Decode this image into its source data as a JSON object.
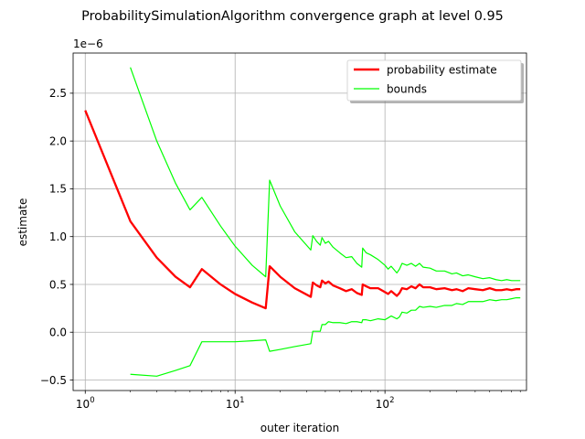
{
  "chart_data": {
    "type": "line",
    "title": "ProbabilitySimulationAlgorithm convergence graph at level 0.95",
    "xlabel": "outer iteration",
    "ylabel": "estimate",
    "x_scale": "log",
    "xlim": [
      0.83,
      880
    ],
    "ylim": [
      -6.1e-07,
      2.92e-06
    ],
    "y_offset_label": "1e−6",
    "x_ticks": [
      {
        "value": 1,
        "base": "10",
        "exp": "0"
      },
      {
        "value": 10,
        "base": "10",
        "exp": "1"
      },
      {
        "value": 100,
        "base": "10",
        "exp": "2"
      }
    ],
    "y_ticks": [
      {
        "value": -5e-07,
        "label": "−0.5"
      },
      {
        "value": 0,
        "label": "0.0"
      },
      {
        "value": 5e-07,
        "label": "0.5"
      },
      {
        "value": 1e-06,
        "label": "1.0"
      },
      {
        "value": 1.5e-06,
        "label": "1.5"
      },
      {
        "value": 2e-06,
        "label": "2.0"
      },
      {
        "value": 2.5e-06,
        "label": "2.5"
      }
    ],
    "grid": true,
    "legend_position": "top-right",
    "series": [
      {
        "name": "probability estimate",
        "color": "#ff0000",
        "x": [
          1,
          2,
          3,
          4,
          5,
          6,
          8,
          10,
          13,
          16,
          17,
          20,
          25,
          32,
          33,
          35,
          37,
          38,
          40,
          42,
          45,
          50,
          55,
          60,
          65,
          70,
          71,
          75,
          80,
          90,
          100,
          105,
          110,
          120,
          125,
          130,
          140,
          150,
          160,
          170,
          180,
          200,
          220,
          250,
          280,
          300,
          330,
          360,
          400,
          450,
          500,
          550,
          600,
          650,
          700,
          750,
          800
        ],
        "y": [
          2.32e-06,
          1.16e-06,
          7.8e-07,
          5.8e-07,
          4.7e-07,
          6.6e-07,
          5e-07,
          4e-07,
          3.1e-07,
          2.5e-07,
          6.9e-07,
          5.8e-07,
          4.6e-07,
          3.7e-07,
          5.2e-07,
          4.9e-07,
          4.7e-07,
          5.4e-07,
          5.1e-07,
          5.3e-07,
          4.9e-07,
          4.6e-07,
          4.3e-07,
          4.5e-07,
          4.1e-07,
          3.9e-07,
          5e-07,
          4.8e-07,
          4.6e-07,
          4.6e-07,
          4.2e-07,
          4e-07,
          4.3e-07,
          3.8e-07,
          4.1e-07,
          4.6e-07,
          4.5e-07,
          4.8e-07,
          4.6e-07,
          5e-07,
          4.7e-07,
          4.7e-07,
          4.5e-07,
          4.6e-07,
          4.4e-07,
          4.5e-07,
          4.3e-07,
          4.6e-07,
          4.5e-07,
          4.4e-07,
          4.6e-07,
          4.4e-07,
          4.4e-07,
          4.5e-07,
          4.4e-07,
          4.5e-07,
          4.5e-07
        ]
      },
      {
        "name": "bounds",
        "color": "#00ff00",
        "x": [
          2,
          3,
          4,
          5,
          6,
          8,
          10,
          13,
          16,
          17,
          20,
          25,
          32,
          33,
          35,
          37,
          38,
          40,
          42,
          45,
          50,
          55,
          60,
          65,
          70,
          71,
          75,
          80,
          90,
          100,
          105,
          110,
          120,
          125,
          130,
          140,
          150,
          160,
          170,
          180,
          200,
          220,
          250,
          280,
          300,
          330,
          360,
          400,
          450,
          500,
          550,
          600,
          650,
          700,
          750,
          800
        ],
        "y": [
          2.77e-06,
          2e-06,
          1.56e-06,
          1.28e-06,
          1.41e-06,
          1.11e-06,
          9e-07,
          7e-07,
          5.8e-07,
          1.59e-06,
          1.32e-06,
          1.05e-06,
          8.6e-07,
          1.01e-06,
          9.5e-07,
          9.1e-07,
          9.9e-07,
          9.3e-07,
          9.5e-07,
          8.9e-07,
          8.3e-07,
          7.8e-07,
          7.9e-07,
          7.2e-07,
          6.8e-07,
          8.8e-07,
          8.3e-07,
          8.1e-07,
          7.6e-07,
          7e-07,
          6.6e-07,
          6.9e-07,
          6.2e-07,
          6.6e-07,
          7.2e-07,
          7e-07,
          7.2e-07,
          6.9e-07,
          7.2e-07,
          6.8e-07,
          6.7e-07,
          6.4e-07,
          6.4e-07,
          6.1e-07,
          6.2e-07,
          5.9e-07,
          6e-07,
          5.8e-07,
          5.6e-07,
          5.7e-07,
          5.5e-07,
          5.4e-07,
          5.5e-07,
          5.4e-07,
          5.4e-07,
          5.4e-07
        ]
      },
      {
        "name": "",
        "color": "#00ff00",
        "x": [
          2,
          3,
          4,
          5,
          6,
          8,
          10,
          13,
          16,
          17,
          20,
          25,
          32,
          33,
          35,
          37,
          38,
          40,
          42,
          45,
          50,
          55,
          60,
          65,
          70,
          71,
          75,
          80,
          90,
          100,
          105,
          110,
          120,
          125,
          130,
          140,
          150,
          160,
          170,
          180,
          200,
          220,
          250,
          280,
          300,
          330,
          360,
          400,
          450,
          500,
          550,
          600,
          650,
          700,
          750,
          800
        ],
        "y": [
          -4.4e-07,
          -4.6e-07,
          -4e-07,
          -3.5e-07,
          -1e-07,
          -1e-07,
          -1e-07,
          -9e-08,
          -8e-08,
          -2e-07,
          -1.8e-07,
          -1.5e-07,
          -1.2e-07,
          1e-08,
          1e-08,
          1e-08,
          8e-08,
          8e-08,
          1.1e-07,
          1e-07,
          1e-07,
          9e-08,
          1.1e-07,
          1.1e-07,
          1e-07,
          1.3e-07,
          1.3e-07,
          1.2e-07,
          1.4e-07,
          1.3e-07,
          1.5e-07,
          1.7e-07,
          1.4e-07,
          1.6e-07,
          2.1e-07,
          2e-07,
          2.3e-07,
          2.3e-07,
          2.7e-07,
          2.6e-07,
          2.7e-07,
          2.6e-07,
          2.8e-07,
          2.8e-07,
          3e-07,
          2.9e-07,
          3.2e-07,
          3.2e-07,
          3.2e-07,
          3.4e-07,
          3.3e-07,
          3.4e-07,
          3.4e-07,
          3.5e-07,
          3.6e-07,
          3.6e-07
        ]
      }
    ]
  }
}
